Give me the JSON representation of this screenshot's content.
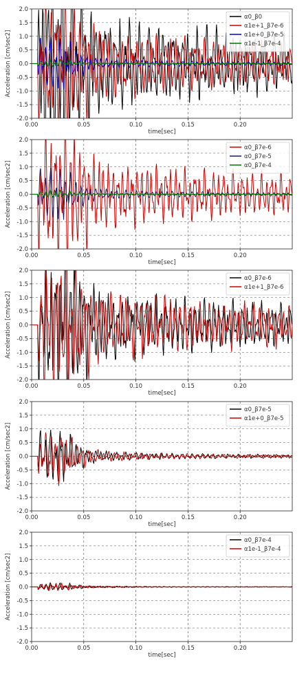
{
  "chart_data": [
    {
      "type": "line",
      "xlabel": "time[sec]",
      "ylabel": "Acceleration [cm/sec2]",
      "xlim": [
        0,
        0.25
      ],
      "ylim": [
        -2.0,
        2.0
      ],
      "xticks": [
        "0.00",
        "0.05",
        "0.10",
        "0.15",
        "0.20"
      ],
      "yticks": [
        "2.0",
        "1.5",
        "1.0",
        "0.5",
        "0.0",
        "-0.5",
        "-1.0",
        "-1.5",
        "-2.0"
      ],
      "grid": true,
      "legend_position": "top-right",
      "series": [
        {
          "name": "α0_β0",
          "color": "#000000",
          "amp": 4.2,
          "seed": 11
        },
        {
          "name": "α1e+1_β7e-6",
          "color": "#cc0000",
          "amp": 3.0,
          "seed": 23
        },
        {
          "name": "α1e+0_β7e-5",
          "color": "#0000cc",
          "amp": 1.15,
          "seed": 37
        },
        {
          "name": "α1e-1_β7e-4",
          "color": "#007700",
          "amp": 0.15,
          "seed": 41
        }
      ]
    },
    {
      "type": "line",
      "xlabel": "time[sec]",
      "ylabel": "Acceleration [cm/sec2]",
      "xlim": [
        0,
        0.25
      ],
      "ylim": [
        -2.0,
        2.0
      ],
      "xticks": [
        "0.00",
        "0.05",
        "0.10",
        "0.15",
        "0.20"
      ],
      "yticks": [
        "2.0",
        "1.5",
        "1.0",
        "0.5",
        "0.0",
        "-0.5",
        "-1.0",
        "-1.5",
        "-2.0"
      ],
      "grid": true,
      "legend_position": "top-right",
      "series": [
        {
          "name": "α0_β7e-6",
          "color": "#cc0000",
          "amp": 3.0,
          "seed": 23
        },
        {
          "name": "α0_β7e-5",
          "color": "#1a1a66",
          "amp": 1.15,
          "seed": 37
        },
        {
          "name": "α0_β7e-4",
          "color": "#007700",
          "amp": 0.15,
          "seed": 41
        }
      ]
    },
    {
      "type": "line",
      "xlabel": "time[sec]",
      "ylabel": "Acceleration [cm/sec2]",
      "xlim": [
        0,
        0.25
      ],
      "ylim": [
        -2.0,
        2.0
      ],
      "xticks": [
        "0.00",
        "0.05",
        "0.10",
        "0.15",
        "0.20"
      ],
      "yticks": [
        "2.0",
        "1.5",
        "1.0",
        "0.5",
        "0.0",
        "-0.5",
        "-1.0",
        "-1.5",
        "-2.0"
      ],
      "grid": true,
      "legend_position": "top-right",
      "series": [
        {
          "name": "α0_β7e-6",
          "color": "#000000",
          "amp": 3.1,
          "seed": 23
        },
        {
          "name": "α1e+1_β7e-6",
          "color": "#cc0000",
          "amp": 3.0,
          "seed": 24
        }
      ]
    },
    {
      "type": "line",
      "xlabel": "time[sec]",
      "ylabel": "Acceleration [cm/sec2]",
      "xlim": [
        0,
        0.25
      ],
      "ylim": [
        -2.0,
        2.0
      ],
      "xticks": [
        "0.00",
        "0.05",
        "0.10",
        "0.15",
        "0.20"
      ],
      "yticks": [
        "2.0",
        "1.5",
        "1.0",
        "0.5",
        "0.0",
        "-0.5",
        "-1.0",
        "-1.5",
        "-2.0"
      ],
      "grid": true,
      "legend_position": "top-right",
      "series": [
        {
          "name": "α0_β7e-5",
          "color": "#000000",
          "amp": 1.15,
          "seed": 37
        },
        {
          "name": "α1e+0_β7e-5",
          "color": "#cc0000",
          "amp": 1.12,
          "seed": 38
        }
      ]
    },
    {
      "type": "line",
      "xlabel": "time[sec]",
      "ylabel": "Acceleration [cm/sec2]",
      "xlim": [
        0,
        0.25
      ],
      "ylim": [
        -2.0,
        2.0
      ],
      "xticks": [
        "0.00",
        "0.05",
        "0.10",
        "0.15",
        "0.20"
      ],
      "yticks": [
        "2.0",
        "1.5",
        "1.0",
        "0.5",
        "0.0",
        "-0.5",
        "-1.0",
        "-1.5",
        "-2.0"
      ],
      "grid": true,
      "legend_position": "top-right",
      "series": [
        {
          "name": "α0_β7e-4",
          "color": "#000000",
          "amp": 0.15,
          "seed": 41
        },
        {
          "name": "α1e-1_β7e-4",
          "color": "#cc0000",
          "amp": 0.14,
          "seed": 42
        }
      ]
    }
  ]
}
